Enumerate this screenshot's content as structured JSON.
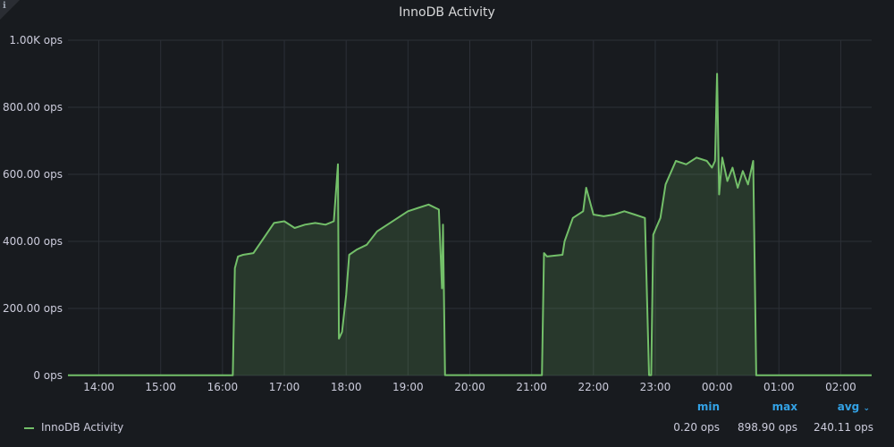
{
  "panel": {
    "title": "InnoDB Activity"
  },
  "colors": {
    "series": "#73bf69",
    "fill": "rgba(115,191,105,0.18)",
    "grid": "#2c3037",
    "text": "#ccccdc"
  },
  "chart_data": {
    "type": "area",
    "title": "InnoDB Activity",
    "xlabel": "",
    "ylabel": "",
    "unit": "ops",
    "ylim": [
      0,
      1000
    ],
    "y_ticks": [
      {
        "value": 0,
        "label": "0 ops"
      },
      {
        "value": 200,
        "label": "200.00 ops"
      },
      {
        "value": 400,
        "label": "400.00 ops"
      },
      {
        "value": 600,
        "label": "600.00 ops"
      },
      {
        "value": 800,
        "label": "800.00 ops"
      },
      {
        "value": 1000,
        "label": "1.00K ops"
      }
    ],
    "x_ticks": [
      "14:00",
      "15:00",
      "16:00",
      "17:00",
      "18:00",
      "19:00",
      "20:00",
      "21:00",
      "22:00",
      "23:00",
      "00:00",
      "01:00",
      "02:00"
    ],
    "xlim": [
      "13:30",
      "02:30"
    ],
    "grid": true,
    "legend": "bottom",
    "series": [
      {
        "name": "InnoDB Activity",
        "points": [
          [
            "13:30",
            0.5
          ],
          [
            "16:10",
            0.5
          ],
          [
            "16:12",
            320
          ],
          [
            "16:15",
            355
          ],
          [
            "16:20",
            360
          ],
          [
            "16:30",
            365
          ],
          [
            "16:40",
            410
          ],
          [
            "16:50",
            455
          ],
          [
            "17:00",
            460
          ],
          [
            "17:10",
            440
          ],
          [
            "17:20",
            450
          ],
          [
            "17:30",
            455
          ],
          [
            "17:40",
            450
          ],
          [
            "17:48",
            460
          ],
          [
            "17:52",
            630
          ],
          [
            "17:53",
            110
          ],
          [
            "17:56",
            130
          ],
          [
            "18:00",
            240
          ],
          [
            "18:03",
            360
          ],
          [
            "18:10",
            375
          ],
          [
            "18:20",
            390
          ],
          [
            "18:30",
            430
          ],
          [
            "18:40",
            450
          ],
          [
            "18:50",
            470
          ],
          [
            "19:00",
            490
          ],
          [
            "19:10",
            500
          ],
          [
            "19:20",
            510
          ],
          [
            "19:30",
            495
          ],
          [
            "19:33",
            260
          ],
          [
            "19:34",
            450
          ],
          [
            "19:36",
            1
          ],
          [
            "21:10",
            1
          ],
          [
            "21:12",
            365
          ],
          [
            "21:15",
            355
          ],
          [
            "21:30",
            360
          ],
          [
            "21:32",
            400
          ],
          [
            "21:40",
            470
          ],
          [
            "21:50",
            490
          ],
          [
            "21:53",
            560
          ],
          [
            "22:00",
            480
          ],
          [
            "22:10",
            475
          ],
          [
            "22:20",
            480
          ],
          [
            "22:30",
            490
          ],
          [
            "22:40",
            480
          ],
          [
            "22:50",
            470
          ],
          [
            "22:54",
            1
          ],
          [
            "22:56",
            1
          ],
          [
            "22:58",
            420
          ],
          [
            "23:05",
            470
          ],
          [
            "23:10",
            570
          ],
          [
            "23:20",
            640
          ],
          [
            "23:30",
            630
          ],
          [
            "23:40",
            650
          ],
          [
            "23:50",
            640
          ],
          [
            "23:55",
            620
          ],
          [
            "23:58",
            640
          ],
          [
            "00:00",
            900
          ],
          [
            "00:02",
            540
          ],
          [
            "00:05",
            650
          ],
          [
            "00:10",
            580
          ],
          [
            "00:15",
            620
          ],
          [
            "00:20",
            560
          ],
          [
            "00:25",
            610
          ],
          [
            "00:30",
            570
          ],
          [
            "00:35",
            640
          ],
          [
            "00:38",
            0.5
          ],
          [
            "02:30",
            0.5
          ]
        ]
      }
    ]
  },
  "legend": {
    "series_name": "InnoDB Activity",
    "min_label": "min",
    "max_label": "max",
    "avg_label": "avg",
    "min_value": "0.20 ops",
    "max_value": "898.90 ops",
    "avg_value": "240.11 ops"
  }
}
